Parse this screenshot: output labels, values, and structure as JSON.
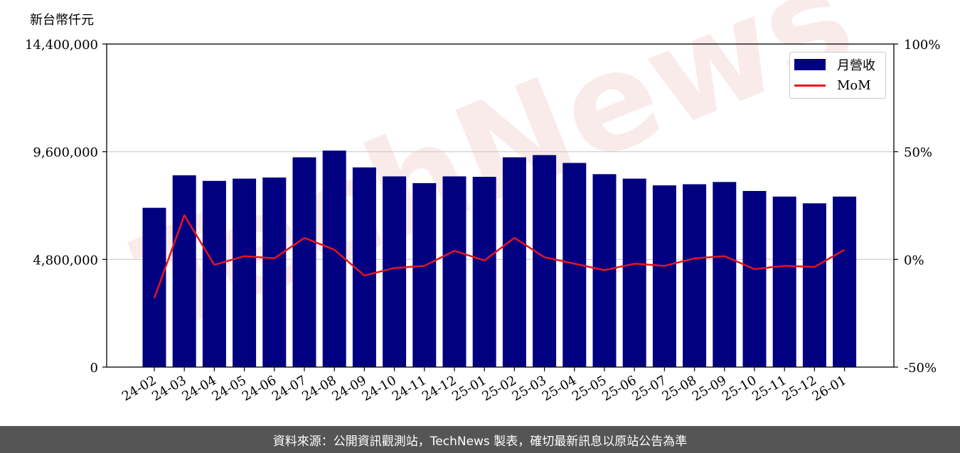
{
  "unit_label": "新台幣仟元",
  "footer_text": "資料來源：公開資訊觀測站，TechNews 製表，確切最新訊息以原站公告為準",
  "watermark": "TechNews",
  "colors": {
    "bar": "#000080",
    "line": "#e8141e",
    "footer_bg": "#555555"
  },
  "legend": {
    "placement": "top-right",
    "items": [
      {
        "label": "月營收"
      },
      {
        "label": "MoM"
      }
    ]
  },
  "chart_data": {
    "type": "bar",
    "title": "",
    "xlabel": "",
    "ylabel": "新台幣仟元",
    "grid": true,
    "categories": [
      "24-02",
      "24-03",
      "24-04",
      "24-05",
      "24-06",
      "24-07",
      "24-08",
      "24-09",
      "24-10",
      "24-11",
      "24-12",
      "25-01",
      "25-02",
      "25-03",
      "25-04",
      "25-05",
      "25-06",
      "25-07",
      "25-08",
      "25-09",
      "25-10",
      "25-11",
      "25-12",
      "26-01"
    ],
    "ylim": [
      0,
      14400000
    ],
    "yticks": [
      "0",
      "4,800,000",
      "9,600,000",
      "14,400,000"
    ],
    "ytick_values": [
      0,
      4800000,
      9600000,
      14400000
    ],
    "y2lim": [
      -50,
      100
    ],
    "y2ticks": [
      "-50%",
      "0%",
      "50%",
      "100%"
    ],
    "y2tick_values": [
      -50,
      0,
      50,
      100
    ],
    "series": [
      {
        "name": "月營收",
        "type": "bar",
        "axis": "left",
        "values": [
          7100000,
          8550000,
          8300000,
          8400000,
          8450000,
          9350000,
          9650000,
          8900000,
          8500000,
          8200000,
          8500000,
          8480000,
          9350000,
          9450000,
          9100000,
          8600000,
          8400000,
          8100000,
          8150000,
          8250000,
          7850000,
          7600000,
          7300000,
          7600000
        ]
      },
      {
        "name": "MoM",
        "type": "line",
        "axis": "right",
        "values": [
          -18,
          20.5,
          -2.5,
          1.5,
          0.5,
          10,
          4.5,
          -7.5,
          -4,
          -3,
          4,
          -0.5,
          10,
          1,
          -2,
          -5,
          -2,
          -3,
          0.5,
          1.5,
          -4.5,
          -3,
          -3.5,
          4.5
        ]
      }
    ]
  }
}
